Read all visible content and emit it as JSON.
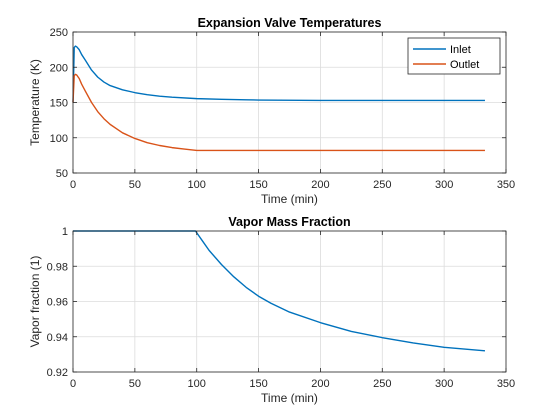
{
  "chart_data": [
    {
      "type": "line",
      "title": "Expansion Valve Temperatures",
      "xlabel": "Time (min)",
      "ylabel": "Temperature (K)",
      "xlim": [
        0,
        350
      ],
      "ylim": [
        50,
        250
      ],
      "xticks": [
        0,
        50,
        100,
        150,
        200,
        250,
        300,
        350
      ],
      "yticks": [
        50,
        100,
        150,
        200,
        250
      ],
      "grid": true,
      "legend": "top-right",
      "series": [
        {
          "name": "Inlet",
          "color": "#0072BD",
          "x": [
            0,
            1,
            2,
            3,
            5,
            7,
            10,
            15,
            20,
            25,
            30,
            40,
            50,
            60,
            70,
            80,
            100,
            120,
            140,
            150,
            200,
            250,
            300,
            333
          ],
          "y": [
            150,
            228,
            230,
            229,
            225,
            218,
            210,
            196,
            186,
            179,
            174,
            168,
            164,
            161,
            159,
            157.5,
            155.5,
            154.5,
            153.8,
            153.5,
            153,
            153,
            153,
            153
          ]
        },
        {
          "name": "Outlet",
          "color": "#D95319",
          "x": [
            0,
            1,
            2,
            3,
            5,
            7,
            10,
            15,
            20,
            25,
            30,
            40,
            50,
            60,
            70,
            80,
            90,
            100,
            110,
            150,
            200,
            250,
            300,
            333
          ],
          "y": [
            150,
            188,
            190,
            189,
            184,
            176,
            166,
            150,
            137,
            127,
            119,
            107,
            99,
            93,
            89,
            86,
            84,
            82,
            82,
            82,
            82,
            82,
            82,
            82
          ]
        }
      ]
    },
    {
      "type": "line",
      "title": "Vapor Mass Fraction",
      "xlabel": "Time (min)",
      "ylabel": "Vapor fraction (1)",
      "xlim": [
        0,
        350
      ],
      "ylim": [
        0.92,
        1.0
      ],
      "xticks": [
        0,
        50,
        100,
        150,
        200,
        250,
        300,
        350
      ],
      "yticks": [
        0.92,
        0.94,
        0.96,
        0.98,
        1
      ],
      "grid": true,
      "series": [
        {
          "color": "#0072BD",
          "x": [
            0,
            50,
            99,
            100,
            105,
            110,
            120,
            130,
            140,
            150,
            160,
            175,
            200,
            225,
            250,
            275,
            300,
            333
          ],
          "y": [
            1.0,
            1.0,
            1.0,
            0.999,
            0.994,
            0.989,
            0.981,
            0.974,
            0.968,
            0.963,
            0.959,
            0.954,
            0.948,
            0.943,
            0.9395,
            0.9365,
            0.934,
            0.932
          ]
        }
      ]
    }
  ]
}
